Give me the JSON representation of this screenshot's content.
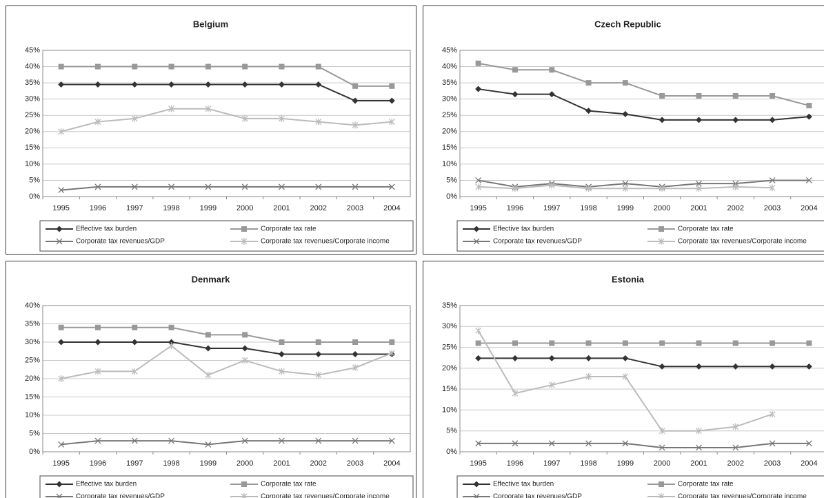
{
  "chart_data": [
    {
      "type": "line",
      "title": "Belgium",
      "categories": [
        "1995",
        "1996",
        "1997",
        "1998",
        "1999",
        "2000",
        "2001",
        "2002",
        "2003",
        "2004"
      ],
      "ylim": [
        0,
        45
      ],
      "yticks": [
        {
          "value": 0,
          "label": "0%"
        },
        {
          "value": 5,
          "label": "5%"
        },
        {
          "value": 10,
          "label": "10%"
        },
        {
          "value": 15,
          "label": "15%"
        },
        {
          "value": 20,
          "label": "20%"
        },
        {
          "value": 25,
          "label": "25%"
        },
        {
          "value": 30,
          "label": "30%"
        },
        {
          "value": 35,
          "label": "35%"
        },
        {
          "value": 40,
          "label": "40%"
        },
        {
          "value": 45,
          "label": "45%"
        }
      ],
      "grid": true,
      "series": [
        {
          "name": "Effective tax burden",
          "color": "#333333",
          "marker": "diamond",
          "values": [
            34.5,
            34.5,
            34.5,
            34.5,
            34.5,
            34.5,
            34.5,
            34.5,
            29.5,
            29.5
          ]
        },
        {
          "name": "Corporate tax rate",
          "color": "#999999",
          "marker": "square",
          "values": [
            40,
            40,
            40,
            40,
            40,
            40,
            40,
            40,
            34,
            34
          ]
        },
        {
          "name": "Corporate tax revenues/GDP",
          "color": "#777777",
          "marker": "x",
          "values": [
            2,
            3,
            3,
            3,
            3,
            3,
            3,
            3,
            3,
            3
          ]
        },
        {
          "name": "Corporate tax revenues/Corporate income",
          "color": "#bbbbbb",
          "marker": "star",
          "values": [
            20,
            23,
            24,
            27,
            27,
            24,
            24,
            23,
            22,
            23
          ]
        }
      ]
    },
    {
      "type": "line",
      "title": "Czech Republic",
      "categories": [
        "1995",
        "1996",
        "1997",
        "1998",
        "1999",
        "2000",
        "2001",
        "2002",
        "2003",
        "2004"
      ],
      "ylim": [
        0,
        45
      ],
      "yticks": [
        {
          "value": 0,
          "label": "0%"
        },
        {
          "value": 5,
          "label": "5%"
        },
        {
          "value": 10,
          "label": "10%"
        },
        {
          "value": 15,
          "label": "15%"
        },
        {
          "value": 20,
          "label": "20%"
        },
        {
          "value": 25,
          "label": "25%"
        },
        {
          "value": 30,
          "label": "30%"
        },
        {
          "value": 35,
          "label": "35%"
        },
        {
          "value": 40,
          "label": "40%"
        },
        {
          "value": 45,
          "label": "45%"
        }
      ],
      "grid": true,
      "series": [
        {
          "name": "Effective tax burden",
          "color": "#333333",
          "marker": "diamond",
          "values": [
            33.1,
            31.5,
            31.5,
            26.4,
            25.4,
            23.6,
            23.6,
            23.6,
            23.6,
            24.6
          ]
        },
        {
          "name": "Corporate tax rate",
          "color": "#999999",
          "marker": "square",
          "values": [
            41,
            39,
            39,
            35,
            35,
            31,
            31,
            31,
            31,
            28
          ]
        },
        {
          "name": "Corporate tax revenues/GDP",
          "color": "#777777",
          "marker": "x",
          "values": [
            5,
            3,
            4,
            3,
            4,
            3,
            4,
            4,
            5,
            5
          ]
        },
        {
          "name": "Corporate tax revenues/Corporate income",
          "color": "#bbbbbb",
          "marker": "star",
          "values": [
            3,
            2.5,
            3.5,
            2.5,
            2.5,
            2.5,
            2.5,
            3,
            2.7,
            null
          ]
        }
      ]
    },
    {
      "type": "line",
      "title": "Denmark",
      "categories": [
        "1995",
        "1996",
        "1997",
        "1998",
        "1999",
        "2000",
        "2001",
        "2002",
        "2003",
        "2004"
      ],
      "ylim": [
        0,
        40
      ],
      "yticks": [
        {
          "value": 0,
          "label": "0%"
        },
        {
          "value": 5,
          "label": "5%"
        },
        {
          "value": 10,
          "label": "10%"
        },
        {
          "value": 15,
          "label": "15%"
        },
        {
          "value": 20,
          "label": "20%"
        },
        {
          "value": 25,
          "label": "25%"
        },
        {
          "value": 30,
          "label": "30%"
        },
        {
          "value": 35,
          "label": "35%"
        },
        {
          "value": 40,
          "label": "40%"
        }
      ],
      "grid": true,
      "series": [
        {
          "name": "Effective tax burden",
          "color": "#333333",
          "marker": "diamond",
          "values": [
            30,
            30,
            30,
            30,
            28.3,
            28.3,
            26.7,
            26.7,
            26.7,
            26.7
          ]
        },
        {
          "name": "Corporate tax rate",
          "color": "#999999",
          "marker": "square",
          "values": [
            34,
            34,
            34,
            34,
            32,
            32,
            30,
            30,
            30,
            30
          ]
        },
        {
          "name": "Corporate tax revenues/GDP",
          "color": "#777777",
          "marker": "x",
          "values": [
            2,
            3,
            3,
            3,
            2,
            3,
            3,
            3,
            3,
            3
          ]
        },
        {
          "name": "Corporate tax revenues/Corporate income",
          "color": "#bbbbbb",
          "marker": "star",
          "values": [
            20,
            22,
            22,
            29,
            21,
            25,
            22,
            21,
            23,
            27
          ]
        }
      ]
    },
    {
      "type": "line",
      "title": "Estonia",
      "categories": [
        "1995",
        "1996",
        "1997",
        "1998",
        "1999",
        "2000",
        "2001",
        "2002",
        "2003",
        "2004"
      ],
      "ylim": [
        0,
        35
      ],
      "yticks": [
        {
          "value": 0,
          "label": "0%"
        },
        {
          "value": 5,
          "label": "5%"
        },
        {
          "value": 10,
          "label": "10%"
        },
        {
          "value": 15,
          "label": "15%"
        },
        {
          "value": 20,
          "label": "20%"
        },
        {
          "value": 25,
          "label": "25%"
        },
        {
          "value": 30,
          "label": "30%"
        },
        {
          "value": 35,
          "label": "35%"
        }
      ],
      "grid": true,
      "series": [
        {
          "name": "Effective tax burden",
          "color": "#333333",
          "marker": "diamond",
          "values": [
            22.4,
            22.4,
            22.4,
            22.4,
            22.4,
            20.4,
            20.4,
            20.4,
            20.4,
            20.4
          ]
        },
        {
          "name": "Corporate tax rate",
          "color": "#999999",
          "marker": "square",
          "values": [
            26,
            26,
            26,
            26,
            26,
            26,
            26,
            26,
            26,
            26
          ]
        },
        {
          "name": "Corporate tax revenues/GDP",
          "color": "#777777",
          "marker": "x",
          "values": [
            2,
            2,
            2,
            2,
            2,
            1,
            1,
            1,
            2,
            2
          ]
        },
        {
          "name": "Corporate tax revenues/Corporate income",
          "color": "#bbbbbb",
          "marker": "star",
          "values": [
            29,
            14,
            16,
            18,
            18,
            5,
            5,
            6,
            9,
            null
          ]
        }
      ]
    }
  ]
}
